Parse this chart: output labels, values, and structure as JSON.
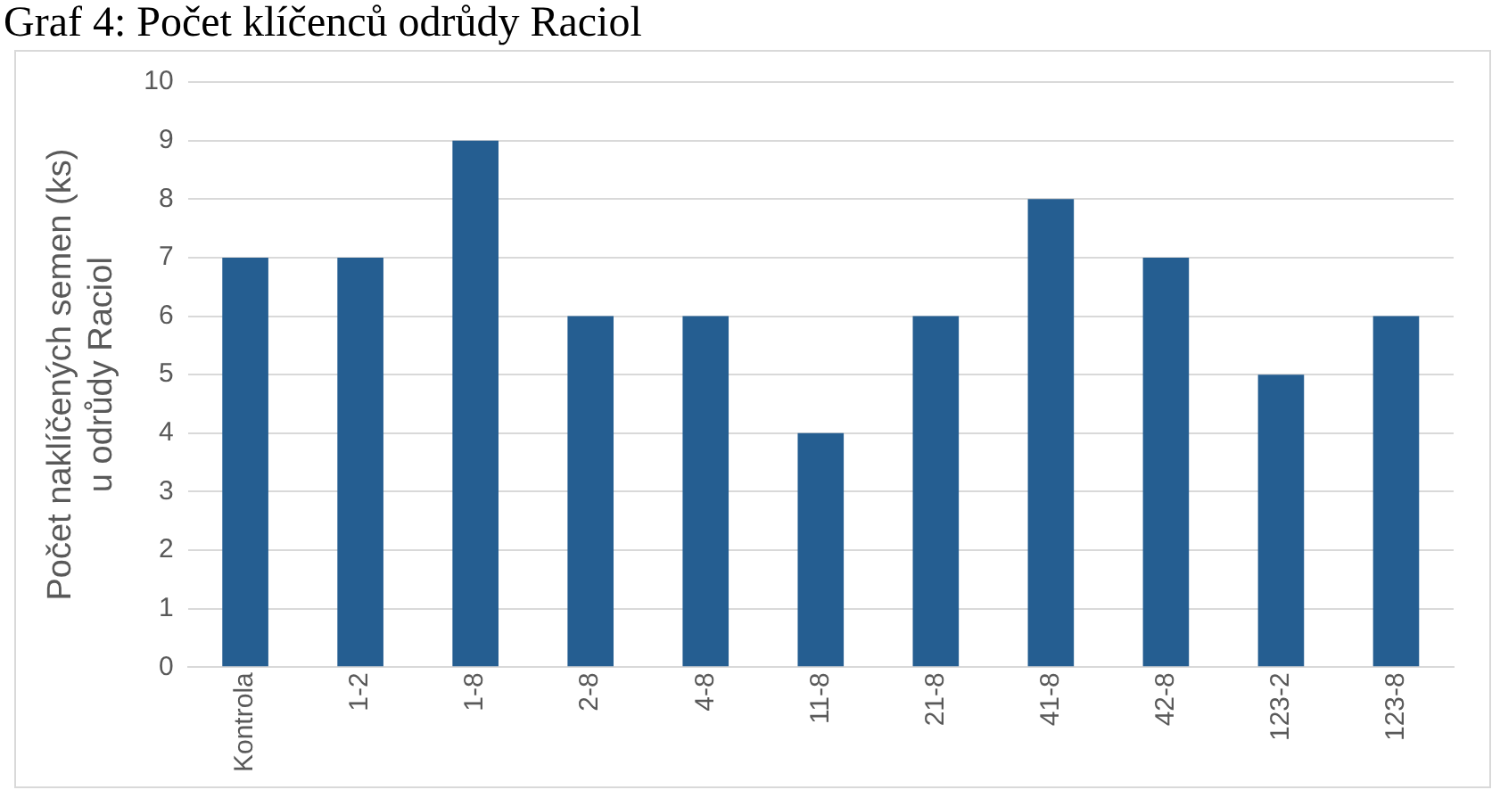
{
  "chart_data": {
    "type": "bar",
    "title": "Graf 4: Počet klíčenců odrůdy Raciol",
    "ylabel": "Počet naklíčených semen (ks)\nu odrůdy Raciol",
    "categories": [
      "Kontrola",
      "1-2",
      "1-8",
      "2-8",
      "4-8",
      "11-8",
      "21-8",
      "41-8",
      "42-8",
      "123-2",
      "123-8"
    ],
    "values": [
      7,
      7,
      9,
      6,
      6,
      4,
      6,
      8,
      7,
      5,
      6
    ],
    "color": "#255e91",
    "ylim": [
      0,
      10
    ],
    "yticks": [
      0,
      1,
      2,
      3,
      4,
      5,
      6,
      7,
      8,
      9,
      10
    ],
    "grid": "y"
  }
}
